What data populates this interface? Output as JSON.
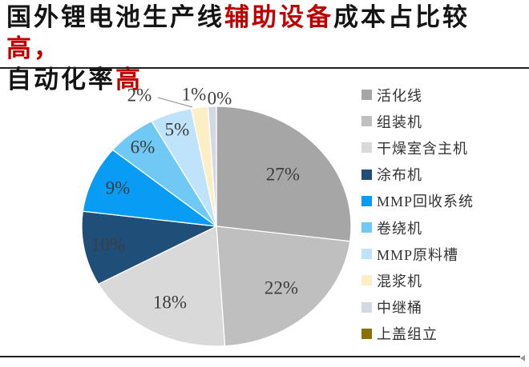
{
  "title": {
    "lines": [
      {
        "segments": [
          {
            "text": "国外锂电池生产线",
            "emph": false
          },
          {
            "text": "辅助设备",
            "emph": true
          },
          {
            "text": "成本占比较",
            "emph": false
          },
          {
            "text": "高，",
            "emph": true
          }
        ]
      },
      {
        "segments": [
          {
            "text": "自动化率",
            "emph": false
          },
          {
            "text": "高",
            "emph": true
          }
        ]
      }
    ],
    "emphasis_color": "#c00000",
    "text_color": "#141414"
  },
  "chart_data": {
    "type": "pie",
    "categories": [
      "活化线",
      "组装机",
      "干燥室含主机",
      "涂布机",
      "MMP回收系统",
      "卷绕机",
      "MMP原料槽",
      "混浆机",
      "中继桶",
      "上盖组立"
    ],
    "values": [
      27,
      22,
      18,
      10,
      9,
      6,
      5,
      2,
      1,
      0
    ],
    "labels": [
      "27%",
      "22%",
      "18%",
      "10%",
      "9%",
      "6%",
      "5%",
      "2%",
      "1%",
      "0%"
    ],
    "colors": [
      "#a6a6a6",
      "#bfbfbf",
      "#d9d9d9",
      "#1f4e79",
      "#089cf4",
      "#70c9f4",
      "#bee3fa",
      "#fdeec5",
      "#d2d9e3",
      "#8d6e08"
    ],
    "legend_position": "right",
    "start_angle_deg": 0,
    "direction": "clockwise",
    "label_color": "#3d3d3d",
    "slice_border_color": "#ffffff"
  }
}
